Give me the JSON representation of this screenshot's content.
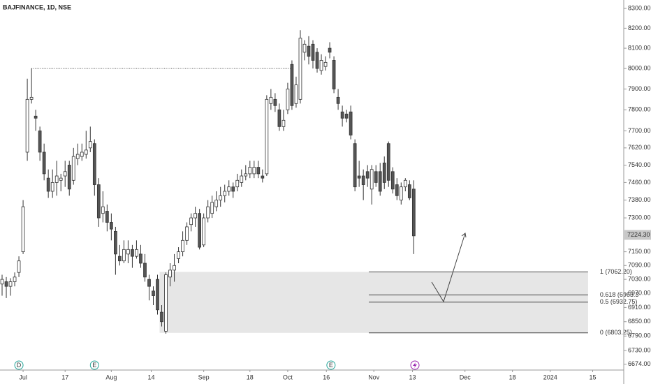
{
  "chart_data": {
    "type": "candlestick",
    "title": "BAJFINANCE, 1D, NSE",
    "log_scale": true,
    "ylim": [
      6650,
      8343
    ],
    "yticks": [
      {
        "value": 8300,
        "label": "8300.00"
      },
      {
        "value": 8200,
        "label": "8200.00"
      },
      {
        "value": 8100,
        "label": "8100.00"
      },
      {
        "value": 8000,
        "label": "8000.00"
      },
      {
        "value": 7900,
        "label": "7900.00"
      },
      {
        "value": 7800,
        "label": "7800.00"
      },
      {
        "value": 7700,
        "label": "7700.00"
      },
      {
        "value": 7620,
        "label": "7620.00"
      },
      {
        "value": 7540,
        "label": "7540.00"
      },
      {
        "value": 7460,
        "label": "7460.00"
      },
      {
        "value": 7380,
        "label": "7380.00"
      },
      {
        "value": 7300,
        "label": "7300.00"
      },
      {
        "value": 7150,
        "label": "7150.00"
      },
      {
        "value": 7090,
        "label": "7090.00"
      },
      {
        "value": 7030,
        "label": "7030.00"
      },
      {
        "value": 6970,
        "label": "6970.00"
      },
      {
        "value": 6910,
        "label": "6910.00"
      },
      {
        "value": 6850,
        "label": "6850.00"
      },
      {
        "value": 6790,
        "label": "6790.00"
      },
      {
        "value": 6730,
        "label": "6730.00"
      },
      {
        "value": 6674,
        "label": "6674.00"
      }
    ],
    "xlim": [
      -0.5,
      147.5
    ],
    "xticks": [
      {
        "value": 5,
        "label": "Jul"
      },
      {
        "value": 15,
        "label": "17"
      },
      {
        "value": 26,
        "label": "Aug"
      },
      {
        "value": 35.5,
        "label": "14"
      },
      {
        "value": 48,
        "label": "Sep"
      },
      {
        "value": 59,
        "label": "18"
      },
      {
        "value": 68,
        "label": "Oct"
      },
      {
        "value": 77.2,
        "label": "16"
      },
      {
        "value": 88.5,
        "label": "Nov"
      },
      {
        "value": 97.7,
        "label": "13"
      },
      {
        "value": 110.2,
        "label": "Dec"
      },
      {
        "value": 121.5,
        "label": "18"
      },
      {
        "value": 130.5,
        "label": "2024"
      },
      {
        "value": 140.6,
        "label": "15"
      }
    ],
    "open": [
      7010,
      7020,
      7000,
      7020,
      7060,
      7150,
      7600,
      7850,
      7770,
      7700,
      7600,
      7480,
      7420,
      7460,
      7470,
      7490,
      7540,
      7470,
      7570,
      7580,
      7590,
      7620,
      7640,
      7450,
      7320,
      7330,
      7280,
      7240,
      7130,
      7110,
      7140,
      7160,
      7130,
      7140,
      7100,
      7030,
      6980,
      7030,
      6890,
      6810,
      7040,
      7070,
      7120,
      7150,
      7200,
      7270,
      7300,
      7320,
      7180,
      7300,
      7320,
      7350,
      7380,
      7400,
      7420,
      7440,
      7440,
      7460,
      7490,
      7500,
      7500,
      7530,
      7490,
      7500,
      7830,
      7850,
      7800,
      7720,
      7800,
      8020,
      7830,
      7850,
      8080,
      8110,
      8120,
      8080,
      7990,
      8010,
      8100,
      8040,
      7860,
      7790,
      7780,
      7790,
      7640,
      7490,
      7490,
      7510,
      7430,
      7510,
      7510,
      7550,
      7640,
      7510,
      7450,
      7380,
      7440,
      7450,
      7430
    ],
    "high": [
      7050,
      7040,
      7035,
      7060,
      7130,
      7380,
      7950,
      8000,
      7800,
      7720,
      7640,
      7520,
      7520,
      7560,
      7500,
      7560,
      7560,
      7620,
      7640,
      7640,
      7700,
      7720,
      7660,
      7480,
      7420,
      7360,
      7320,
      7260,
      7180,
      7200,
      7200,
      7180,
      7200,
      7180,
      7140,
      7050,
      7000,
      7050,
      6920,
      7060,
      7100,
      7140,
      7170,
      7240,
      7280,
      7320,
      7350,
      7340,
      7320,
      7380,
      7400,
      7420,
      7440,
      7450,
      7470,
      7460,
      7500,
      7520,
      7540,
      7560,
      7560,
      7560,
      7520,
      7870,
      7900,
      7880,
      7830,
      7800,
      7930,
      8040,
      7960,
      8190,
      8140,
      8160,
      8140,
      8100,
      8070,
      8060,
      8130,
      8060,
      7900,
      7820,
      7800,
      7820,
      7660,
      7560,
      7520,
      7540,
      7540,
      7540,
      7550,
      7580,
      7650,
      7530,
      7480,
      7460,
      7480,
      7470,
      7470
    ],
    "low": [
      6960,
      6950,
      6960,
      7000,
      7040,
      7140,
      7560,
      7830,
      7700,
      7560,
      7470,
      7390,
      7390,
      7400,
      7420,
      7440,
      7400,
      7450,
      7540,
      7560,
      7570,
      7600,
      7400,
      7260,
      7280,
      7240,
      7200,
      7050,
      7090,
      7100,
      7100,
      7080,
      7120,
      7080,
      7020,
      6940,
      6920,
      6880,
      6830,
      6800,
      7000,
      7020,
      7100,
      7130,
      7180,
      7240,
      7260,
      7160,
      7170,
      7280,
      7300,
      7330,
      7350,
      7370,
      7400,
      7390,
      7420,
      7440,
      7470,
      7480,
      7480,
      7480,
      7460,
      7490,
      7800,
      7790,
      7700,
      7700,
      7780,
      7800,
      7810,
      7830,
      8040,
      8020,
      8000,
      7980,
      7970,
      7990,
      8050,
      7880,
      7800,
      7720,
      7740,
      7660,
      7420,
      7440,
      7380,
      7440,
      7360,
      7440,
      7400,
      7430,
      7440,
      7410,
      7380,
      7360,
      7420,
      7380,
      7140
    ],
    "close": [
      7030,
      7000,
      7020,
      7040,
      7110,
      7350,
      7850,
      7860,
      7760,
      7600,
      7500,
      7420,
      7460,
      7490,
      7480,
      7510,
      7430,
      7580,
      7590,
      7600,
      7610,
      7650,
      7450,
      7300,
      7350,
      7280,
      7250,
      7140,
      7110,
      7160,
      7160,
      7130,
      7160,
      7100,
      7040,
      7000,
      6960,
      6900,
      6850,
      7050,
      7070,
      7090,
      7150,
      7200,
      7260,
      7300,
      7320,
      7170,
      7300,
      7350,
      7370,
      7380,
      7400,
      7420,
      7440,
      7420,
      7470,
      7490,
      7500,
      7530,
      7530,
      7500,
      7480,
      7850,
      7860,
      7820,
      7720,
      7750,
      7900,
      7820,
      7920,
      8150,
      8120,
      8060,
      8040,
      8000,
      8040,
      8030,
      8080,
      7900,
      7830,
      7760,
      7760,
      7680,
      7440,
      7480,
      7450,
      7480,
      7520,
      7460,
      7420,
      7460,
      7470,
      7430,
      7400,
      7440,
      7470,
      7390,
      7220
    ],
    "up_color": "#ffffff",
    "down_color": "#555555",
    "last_price": {
      "value": 7224.3,
      "label": "7224.30"
    },
    "reference_line": {
      "value": 8000,
      "x": [
        7,
        69
      ]
    },
    "zone": {
      "x": [
        37.5,
        139.5
      ],
      "y": [
        6803.25,
        7062.2
      ],
      "color": "#e6e6e6"
    },
    "fib_x": [
      87.3,
      139.5
    ],
    "fib_levels": [
      {
        "value": 7062.2,
        "label": "1 (7062.20)"
      },
      {
        "value": 6963.3,
        "label": "0.618 (6963.3"
      },
      {
        "value": 6932.75,
        "label": "0.5 (6932.75)"
      },
      {
        "value": 6803.25,
        "label": "0 (6803.25)"
      }
    ],
    "events": [
      {
        "x": 4,
        "label": "D"
      },
      {
        "x": 22,
        "label": "E"
      },
      {
        "x": 78.3,
        "label": "E"
      }
    ]
  }
}
